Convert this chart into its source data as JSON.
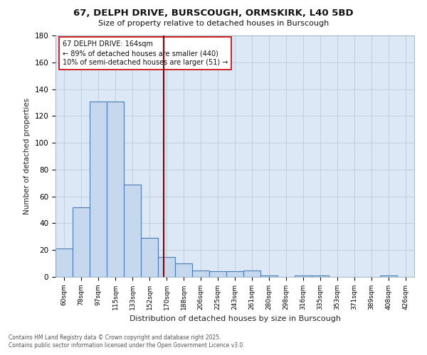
{
  "title_line1": "67, DELPH DRIVE, BURSCOUGH, ORMSKIRK, L40 5BD",
  "title_line2": "Size of property relative to detached houses in Burscough",
  "xlabel": "Distribution of detached houses by size in Burscough",
  "ylabel": "Number of detached properties",
  "categories": [
    "60sqm",
    "78sqm",
    "97sqm",
    "115sqm",
    "133sqm",
    "152sqm",
    "170sqm",
    "188sqm",
    "206sqm",
    "225sqm",
    "243sqm",
    "261sqm",
    "280sqm",
    "298sqm",
    "316sqm",
    "335sqm",
    "353sqm",
    "371sqm",
    "389sqm",
    "408sqm",
    "426sqm"
  ],
  "values": [
    21,
    52,
    131,
    131,
    69,
    29,
    15,
    10,
    5,
    4,
    4,
    5,
    1,
    0,
    1,
    1,
    0,
    0,
    0,
    1,
    0
  ],
  "bar_color": "#c5d8ee",
  "bar_edge_color": "#4a7cb5",
  "vline_color": "#8b0000",
  "annotation_line1": "67 DELPH DRIVE: 164sqm",
  "annotation_line2": "← 89% of detached houses are smaller (440)",
  "annotation_line3": "10% of semi-detached houses are larger (51) →",
  "annotation_box_color": "#ffffff",
  "annotation_box_edge": "#cc0000",
  "ylim": [
    0,
    180
  ],
  "yticks": [
    0,
    20,
    40,
    60,
    80,
    100,
    120,
    140,
    160,
    180
  ],
  "footer1": "Contains HM Land Registry data © Crown copyright and database right 2025.",
  "footer2": "Contains public sector information licensed under the Open Government Licence v3.0.",
  "background_color": "#dce8f5",
  "fig_background": "#ffffff",
  "grid_color": "#c0cfe0"
}
